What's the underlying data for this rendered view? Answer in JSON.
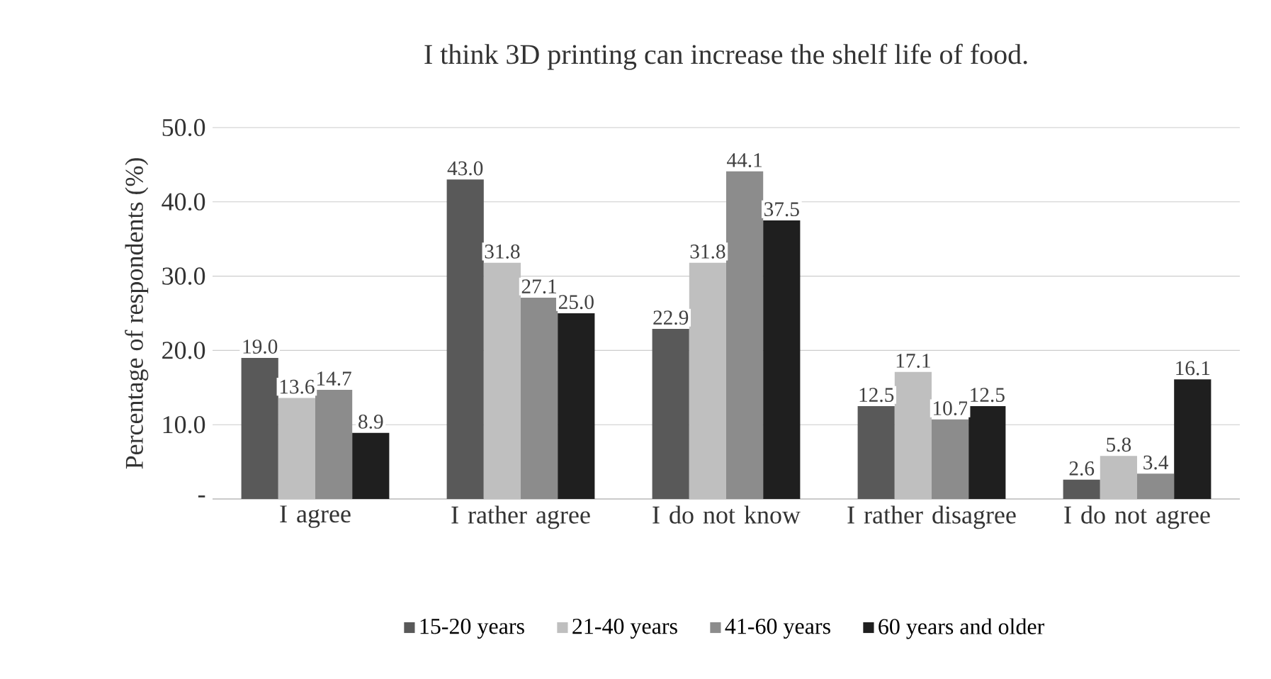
{
  "chart_data": {
    "type": "bar",
    "title": "I think 3D printing can increase the shelf life of food.",
    "ylabel": "Percentage of respondents (%)",
    "categories": [
      "I agree",
      "I rather agree",
      "I do not know",
      "I rather disagree",
      "I do not agree"
    ],
    "series": [
      {
        "name": "15-20 years",
        "color": "#595959",
        "values": [
          19.0,
          43.0,
          22.9,
          12.5,
          2.6
        ],
        "value_labels": [
          "19.0",
          "43.0",
          "22.9",
          "12.5",
          "2.6"
        ]
      },
      {
        "name": "21-40 years",
        "color": "#bfbfbf",
        "values": [
          13.6,
          31.8,
          31.8,
          17.1,
          5.8
        ],
        "value_labels": [
          "13.6",
          "31.8",
          "31.8",
          "17.1",
          "5.8"
        ]
      },
      {
        "name": "41-60 years",
        "color": "#8c8c8c",
        "values": [
          14.7,
          27.1,
          44.1,
          10.7,
          3.4
        ],
        "value_labels": [
          "14.7",
          "27.1",
          "44.1",
          "10.7",
          "3.4"
        ]
      },
      {
        "name": "60 years and older",
        "color": "#1f1f1f",
        "values": [
          8.9,
          25.0,
          37.5,
          12.5,
          16.1
        ],
        "value_labels": [
          "8.9",
          "25.0",
          "37.5",
          "12.5",
          "16.1"
        ]
      }
    ],
    "ylim": [
      0,
      50
    ],
    "yticks": [
      {
        "value": 0,
        "label": "-"
      },
      {
        "value": 10,
        "label": "10.0"
      },
      {
        "value": 20,
        "label": "20.0"
      },
      {
        "value": 30,
        "label": "30.0"
      },
      {
        "value": 40,
        "label": "40.0"
      },
      {
        "value": 50,
        "label": "50.0"
      }
    ],
    "grid": "y",
    "legend": "bottom"
  }
}
